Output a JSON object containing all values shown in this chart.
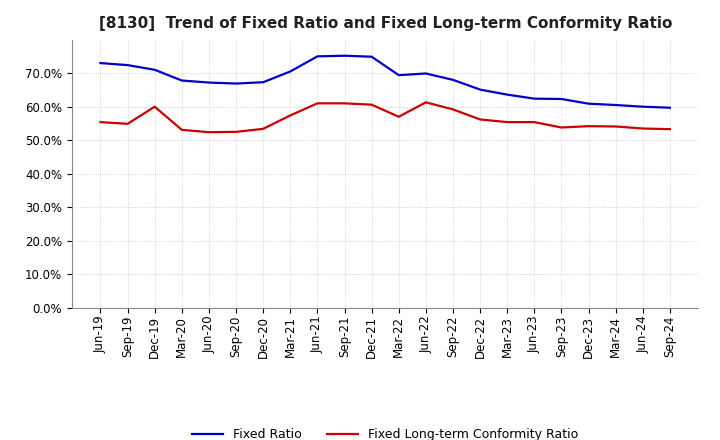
{
  "title": "[8130]  Trend of Fixed Ratio and Fixed Long-term Conformity Ratio",
  "x_labels": [
    "Jun-19",
    "Sep-19",
    "Dec-19",
    "Mar-20",
    "Jun-20",
    "Sep-20",
    "Dec-20",
    "Mar-21",
    "Jun-21",
    "Sep-21",
    "Dec-21",
    "Mar-22",
    "Jun-22",
    "Sep-22",
    "Dec-22",
    "Mar-23",
    "Jun-23",
    "Sep-23",
    "Dec-23",
    "Mar-24",
    "Jun-24",
    "Sep-24"
  ],
  "fixed_ratio": [
    0.73,
    0.724,
    0.71,
    0.678,
    0.672,
    0.669,
    0.673,
    0.705,
    0.75,
    0.752,
    0.749,
    0.694,
    0.699,
    0.68,
    0.651,
    0.636,
    0.624,
    0.623,
    0.609,
    0.605,
    0.6,
    0.597
  ],
  "fixed_lt_ratio": [
    0.554,
    0.549,
    0.6,
    0.531,
    0.524,
    0.525,
    0.534,
    0.574,
    0.61,
    0.61,
    0.606,
    0.57,
    0.613,
    0.592,
    0.562,
    0.554,
    0.554,
    0.538,
    0.542,
    0.541,
    0.535,
    0.533
  ],
  "ylim": [
    0.0,
    0.8
  ],
  "yticks": [
    0.0,
    0.1,
    0.2,
    0.3,
    0.4,
    0.5,
    0.6,
    0.7
  ],
  "fixed_ratio_color": "#0000cc",
  "fixed_lt_ratio_color": "#cc0000",
  "background_color": "#ffffff",
  "grid_color": "#bbbbbb",
  "line_width": 1.6,
  "legend_fixed": "Fixed Ratio",
  "legend_fixed_lt": "Fixed Long-term Conformity Ratio",
  "title_fontsize": 11,
  "tick_fontsize": 8.5,
  "legend_fontsize": 9
}
